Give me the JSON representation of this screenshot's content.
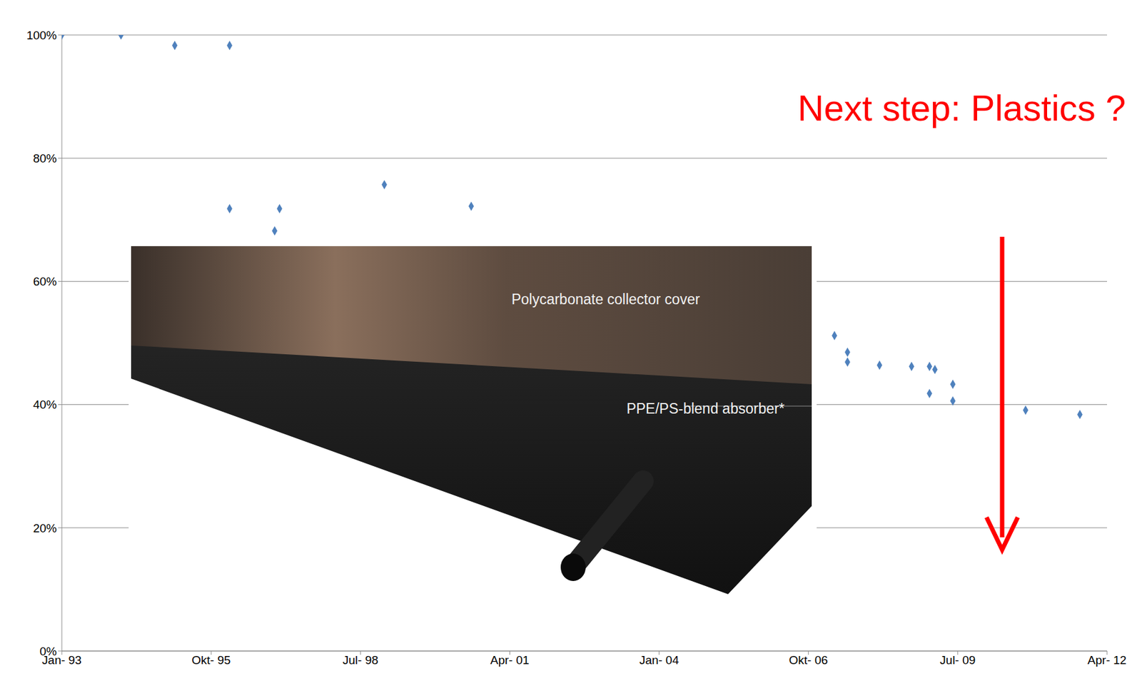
{
  "chart_data": {
    "type": "scatter",
    "x": [
      1993.0,
      1994.09,
      1995.08,
      1996.09,
      1996.09,
      1997.01,
      1996.92,
      1998.94,
      2000.54,
      2007.23,
      2007.47,
      2007.47,
      2008.06,
      2008.65,
      2008.98,
      2009.08,
      2008.98,
      2009.41,
      2009.41,
      2010.75,
      2011.75
    ],
    "values": [
      100,
      100,
      98.3,
      98.3,
      71.8,
      71.8,
      68.2,
      75.7,
      72.2,
      51.2,
      48.5,
      46.9,
      46.4,
      46.2,
      46.2,
      45.7,
      41.8,
      43.3,
      40.6,
      39.1,
      38.4
    ],
    "color": "#4f81bd",
    "marker": "diamond",
    "xlim": [
      1993.0,
      2012.25
    ],
    "xticks": [
      {
        "value": 1993.0,
        "label": "Jan- 93"
      },
      {
        "value": 1995.75,
        "label": "Okt- 95"
      },
      {
        "value": 1998.5,
        "label": "Jul- 98"
      },
      {
        "value": 2001.25,
        "label": "Apr- 01"
      },
      {
        "value": 2004.0,
        "label": "Jan- 04"
      },
      {
        "value": 2006.75,
        "label": "Okt- 06"
      },
      {
        "value": 2009.5,
        "label": "Jul- 09"
      },
      {
        "value": 2012.25,
        "label": "Apr- 12"
      }
    ],
    "ylim": [
      0,
      100
    ],
    "yticks": [
      {
        "value": 0,
        "label": "0%"
      },
      {
        "value": 20,
        "label": "20%"
      },
      {
        "value": 40,
        "label": "40%"
      },
      {
        "value": 60,
        "label": "60%"
      },
      {
        "value": 80,
        "label": "80%"
      },
      {
        "value": 100,
        "label": "100%"
      }
    ],
    "grid": true,
    "annotations": [
      "Next step: Plastics ?",
      "Polycarbonate collector cover",
      "PPE/PS-blend absorber*"
    ]
  }
}
